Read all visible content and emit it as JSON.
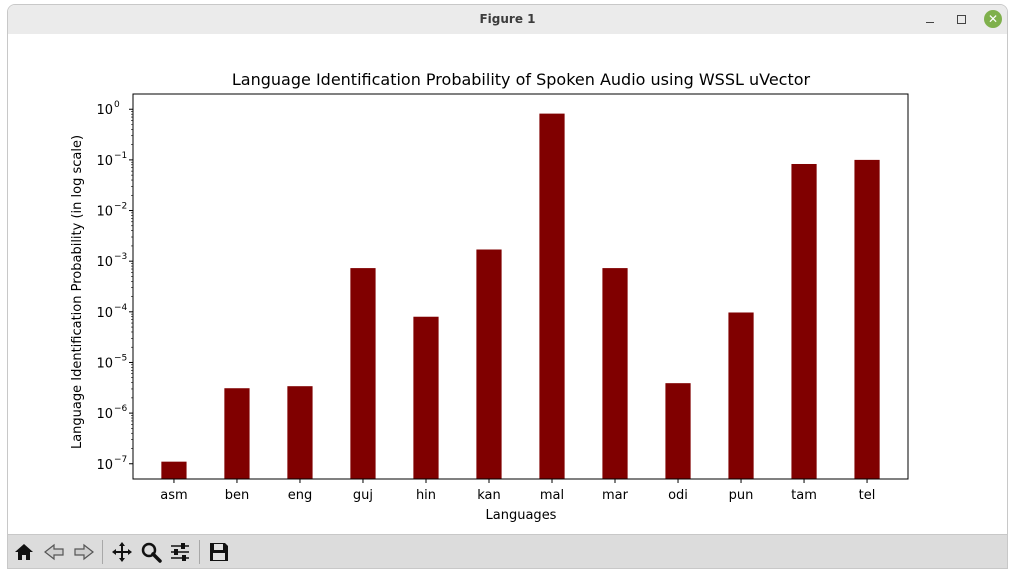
{
  "window": {
    "title": "Figure 1",
    "buttons": [
      "minimize",
      "maximize",
      "close"
    ]
  },
  "toolbar": {
    "buttons": [
      {
        "name": "home",
        "icon": "home-icon"
      },
      {
        "name": "back",
        "icon": "back-arrow-icon"
      },
      {
        "name": "forward",
        "icon": "forward-arrow-icon"
      },
      {
        "name": "pan",
        "icon": "move-icon"
      },
      {
        "name": "zoom",
        "icon": "zoom-icon"
      },
      {
        "name": "configure",
        "icon": "sliders-icon"
      },
      {
        "name": "save",
        "icon": "save-icon"
      }
    ]
  },
  "chart_data": {
    "type": "bar",
    "title": "Language Identification Probability of Spoken Audio using WSSL uVector",
    "xlabel": "Languages",
    "ylabel": "Language Identification Probability (in log scale)",
    "yscale": "log",
    "ylim": [
      5e-08,
      2
    ],
    "ytick_exponents": [
      -7,
      -6,
      -5,
      -4,
      -3,
      -2,
      -1,
      0
    ],
    "categories": [
      "asm",
      "ben",
      "eng",
      "guj",
      "hin",
      "kan",
      "mal",
      "mar",
      "odi",
      "pun",
      "tam",
      "tel"
    ],
    "values": [
      1.1e-07,
      3.1e-06,
      3.4e-06,
      0.00073,
      8e-05,
      0.0017,
      0.82,
      0.00073,
      3.9e-06,
      9.7e-05,
      0.083,
      0.1
    ],
    "bar_color": "#800000",
    "grid": false,
    "legend": "none"
  }
}
